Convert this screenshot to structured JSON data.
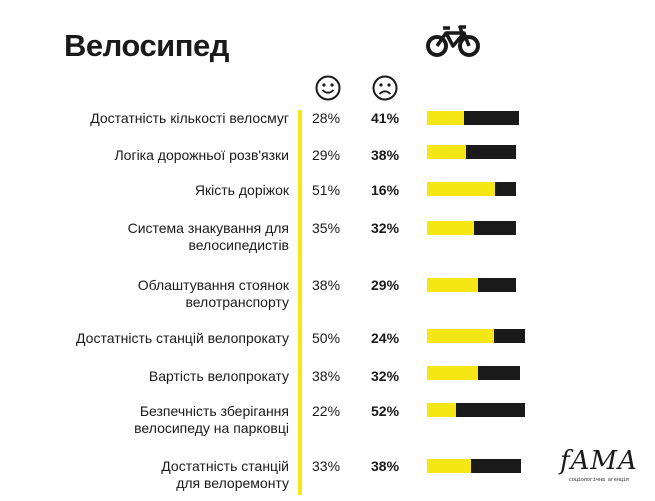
{
  "chart_data": {
    "type": "bar",
    "stacked": true,
    "title": "Велосипед",
    "icon": "bicycle-icon",
    "legend": [
      "satisfied (smile-icon)",
      "dissatisfied (sad-icon)"
    ],
    "colors": {
      "positive": "#f5e614",
      "negative": "#1a1a1a"
    },
    "categories": [
      "Достатність кількості велосмуг",
      "Логіка дорожньої розв'язки",
      "Якість доріжок",
      "Система знакування для\nвелосипедистів",
      "Облаштування стоянок\nвелотранспорту",
      "Достатність станцій велопрокату",
      "Вартість велопрокату",
      "Безпечність зберігання\nвелосипеду на парковці",
      "Достатність станцій\nдля велоремонту"
    ],
    "series": [
      {
        "name": "positive",
        "values": [
          28,
          29,
          51,
          35,
          38,
          50,
          38,
          22,
          33
        ],
        "labels": [
          "28%",
          "29%",
          "51%",
          "35%",
          "38%",
          "50%",
          "38%",
          "22%",
          "33%"
        ]
      },
      {
        "name": "negative",
        "values": [
          41,
          38,
          16,
          32,
          29,
          24,
          32,
          52,
          38
        ],
        "labels": [
          "41%",
          "38%",
          "16%",
          "32%",
          "29%",
          "24%",
          "32%",
          "52%",
          "38%"
        ]
      }
    ]
  },
  "logo": {
    "word": "fAMA",
    "subtitle": "соціологічна агенція"
  }
}
